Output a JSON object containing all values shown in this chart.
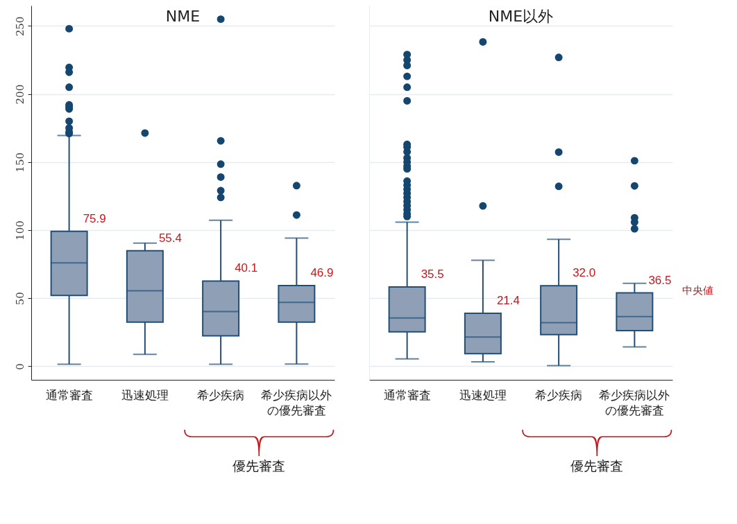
{
  "chart_data": [
    {
      "type": "box",
      "title": "NME",
      "categories": [
        "通常審査",
        "迅速処理",
        "希少疾病",
        "希少疾病以外の優先審査"
      ],
      "ylim": [
        -10,
        265
      ],
      "yticks": [
        0,
        50,
        100,
        150,
        200,
        250
      ],
      "grid": "y",
      "series": [
        {
          "color": "#8fa0b6",
          "boxes": [
            {
              "low": 1.4,
              "q1": 52.0,
              "median": 75.9,
              "q3": 99.1,
              "high": 169.5,
              "outliers": [
                171,
                172,
                175,
                180,
                189,
                190.5,
                192,
                205,
                216,
                219.5,
                248
              ]
            },
            {
              "low": 8.7,
              "q1": 32.4,
              "median": 55.4,
              "q3": 84.8,
              "high": 90.5,
              "outliers": [
                171.3
              ]
            },
            {
              "low": 1.4,
              "q1": 22.3,
              "median": 40.1,
              "q3": 62.6,
              "high": 107.2,
              "outliers": [
                124,
                129,
                139,
                148.5,
                165.6,
                255
              ]
            },
            {
              "low": 1.6,
              "q1": 32.4,
              "median": 46.9,
              "q3": 59.3,
              "high": 94.1,
              "outliers": [
                111.1,
                132.7
              ]
            }
          ]
        }
      ],
      "annotations": [
        "優先審査",
        "75.9",
        "55.4",
        "40.1",
        "46.9"
      ]
    },
    {
      "type": "box",
      "title": "NME以外",
      "categories": [
        "通常審査",
        "迅速処理",
        "希少疾病",
        "希少疾病以外の優先審査"
      ],
      "ylim": [
        -10,
        265
      ],
      "yticks": [
        0,
        50,
        100,
        150,
        200,
        250
      ],
      "grid": "y",
      "tick_labels": "x",
      "series": [
        {
          "color": "#8fa0b6",
          "boxes": [
            {
              "low": 5.4,
              "q1": 25.3,
              "median": 35.5,
              "q3": 58.3,
              "high": 105.9,
              "outliers": [
                110,
                112,
                115,
                118,
                121,
                124,
                127,
                130,
                133,
                136,
                145,
                147,
                150,
                153,
                157.5,
                161,
                163,
                195,
                205,
                213,
                221,
                225,
                229
              ]
            },
            {
              "low": 3.2,
              "q1": 9.2,
              "median": 21.4,
              "q3": 38.9,
              "high": 77.8,
              "outliers": [
                117.8,
                238.3
              ]
            },
            {
              "low": 0.5,
              "q1": 23.2,
              "median": 32.0,
              "q3": 59.1,
              "high": 93.3,
              "outliers": [
                132.2,
                157.3,
                226.9
              ]
            },
            {
              "low": 14.2,
              "q1": 26.2,
              "median": 36.5,
              "q3": 53.9,
              "high": 60.9,
              "outliers": [
                101,
                105.9,
                109.1,
                132.5,
                151
              ]
            }
          ]
        }
      ],
      "annotations": [
        "優先審査",
        "35.5",
        "21.4",
        "32.0",
        "36.5",
        "中央値"
      ]
    }
  ]
}
